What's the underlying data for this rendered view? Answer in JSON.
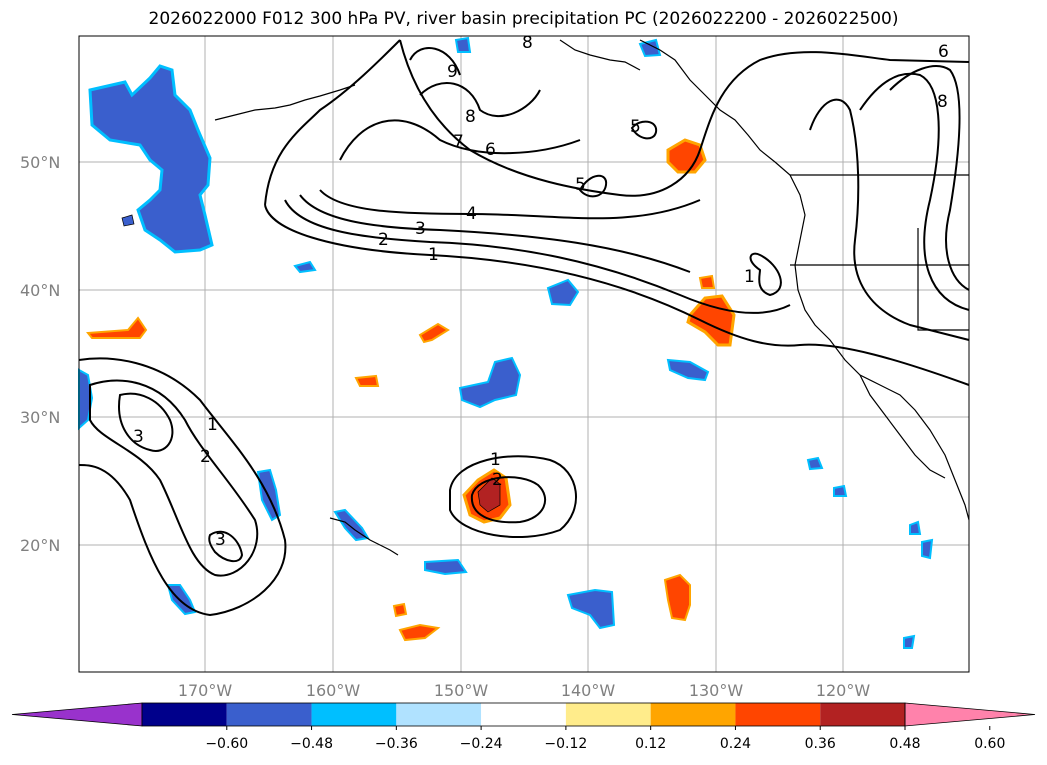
{
  "title": "2026022000 F012 300 hPa PV, river basin precipitation PC (2026022200 - 2026022500)",
  "lat_labels": [
    "50°N",
    "40°N",
    "30°N",
    "20°N"
  ],
  "lon_labels": [
    "170°W",
    "160°W",
    "150°W",
    "140°W",
    "130°W",
    "120°W"
  ],
  "colorbar": {
    "ticks": [
      "−0.60",
      "−0.48",
      "−0.36",
      "−0.24",
      "−0.12",
      "0.12",
      "0.24",
      "0.36",
      "0.48",
      "0.60"
    ],
    "colors": [
      "#9932cc",
      "#00008b",
      "#3a5fcd",
      "#00bfff",
      "#b0e2ff",
      "#ffffff",
      "#ffec8b",
      "#ffa500",
      "#ff4500",
      "#b22222",
      "#ff82ab"
    ]
  },
  "contour_labels": [
    "1",
    "2",
    "3",
    "4",
    "5",
    "6",
    "7",
    "8",
    "9"
  ],
  "colors": {
    "negative_strong": "#3a5fcd",
    "negative_light": "#00bfff",
    "positive_strong": "#ff4500",
    "positive_light": "#ffa500",
    "contour": "#000000"
  }
}
